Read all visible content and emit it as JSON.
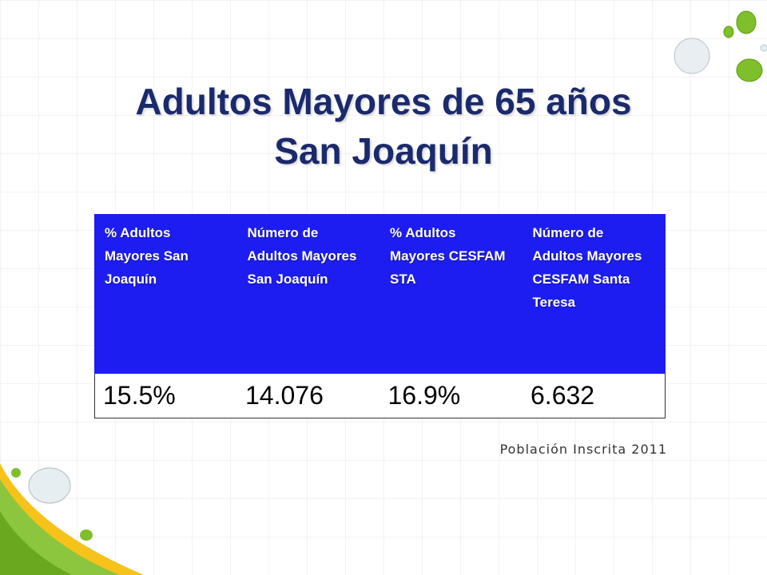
{
  "title": {
    "line1": "Adultos Mayores de 65 años",
    "line2": "San Joaquín"
  },
  "table": {
    "headers": [
      "% Adultos Mayores San Joaquín",
      "Número de Adultos Mayores  San Joaquín",
      "% Adultos Mayores CESFAM STA",
      "Número  de Adultos Mayores CESFAM Santa Teresa"
    ],
    "values": [
      "15.5%",
      "14.076",
      "16.9%",
      "6.632"
    ]
  },
  "source_note": "Población Inscrita 2011",
  "colors": {
    "title": "#1a2a6c",
    "header_bg": "#1d1df2",
    "accent_green": "#8cc63f",
    "accent_yellow": "#f7c21a"
  }
}
